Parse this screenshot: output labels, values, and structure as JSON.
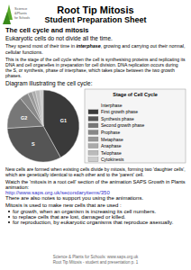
{
  "page": {
    "logo": [
      "Science",
      "&Plants",
      "for Schools"
    ],
    "title": "Root Tip Mitosis",
    "subtitle": "Student Preparation Sheet",
    "section_title": "The cell cycle and mitosis",
    "para1": "Eukaryotic cells do not divide all the time.",
    "para2": [
      "They spend most of their time in ",
      "interphase",
      ", growing and carrying out their normal,"
    ],
    "para2_end": "cellular functions.",
    "para3": [
      "This is the stage of the cell cycle when the cell is synthesising proteins and replicating its",
      "DNA and cell organelles in preparation for cell division. DNA replication occurs during",
      "the S, or synthesis, phase of interphase, which takes place between the two growth",
      "phases."
    ],
    "para4": [
      "New cells are formed when existing cells divide by mitosis, forming two 'daughter cells',",
      "which are genetically identical to each other and to the 'parent' cell."
    ],
    "para5": [
      "Watch the 'mitosis in a root cell' section of the animation SAPS Growth in Plants",
      "animation:"
    ],
    "link": "http://www.saps.org.uk/secondaryitems/350",
    "para6": "There are also notes to support you using the animations.",
    "para7": "Mitosis is used to make new cells that are used :",
    "bullets": [
      "for growth, when an organism is increasing its cell numbers.",
      "to replace cells that are lost, damaged or killed.",
      "for reproduction, by eukaryotic organisms that reproduce asexually."
    ],
    "footer": [
      "Science & Plants for Schools: www.saps.org.uk",
      "Root Tip Mitosis - student and presentation p. 1"
    ]
  },
  "chart_data": {
    "type": "pie",
    "title": "Diagram illustrating the cell cycle:",
    "categories": [
      "First growth phase",
      "Synthesis phase",
      "Second growth phase",
      "Prophase",
      "Metaphase",
      "Anaphase",
      "Telophase",
      "Cytokinesis"
    ],
    "values": [
      42,
      32,
      15,
      4,
      2,
      1.5,
      2,
      1.5
    ],
    "colors": [
      "#3a3a3a",
      "#555555",
      "#777777",
      "#888888",
      "#999999",
      "#aaaaaa",
      "#bbbbbb",
      "#cccccc"
    ],
    "slice_labels": [
      "G1",
      "S",
      "G2",
      null,
      null,
      null,
      null,
      null
    ],
    "legend_title": "Stage of Cell Cycle",
    "legend_group": "Interphase"
  }
}
